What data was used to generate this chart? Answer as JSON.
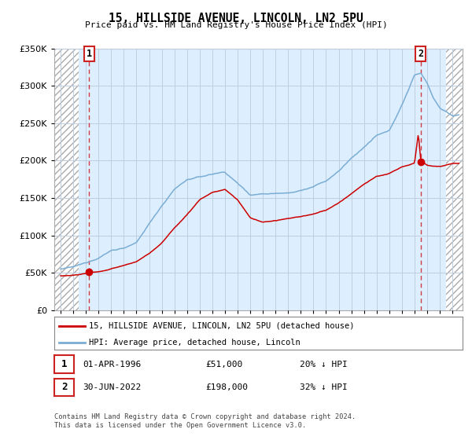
{
  "title": "15, HILLSIDE AVENUE, LINCOLN, LN2 5PU",
  "subtitle": "Price paid vs. HM Land Registry's House Price Index (HPI)",
  "ytick_values": [
    0,
    50000,
    100000,
    150000,
    200000,
    250000,
    300000,
    350000
  ],
  "ylim": [
    0,
    350000
  ],
  "xlim_start": 1993.5,
  "xlim_end": 2025.8,
  "hatch_left_end": 1995.4,
  "hatch_right_start": 2024.5,
  "point1_x": 1996.25,
  "point1_y": 51000,
  "point2_x": 2022.5,
  "point2_y": 198000,
  "red_line_color": "#cc0000",
  "blue_line_color": "#7aadd4",
  "bg_plot_color": "#ddeeff",
  "grid_color": "#c8d8e8",
  "annotation1_label": "1",
  "annotation2_label": "2",
  "legend_label1": "15, HILLSIDE AVENUE, LINCOLN, LN2 5PU (detached house)",
  "legend_label2": "HPI: Average price, detached house, Lincoln",
  "table_row1": [
    "1",
    "01-APR-1996",
    "£51,000",
    "20% ↓ HPI"
  ],
  "table_row2": [
    "2",
    "30-JUN-2022",
    "£198,000",
    "32% ↓ HPI"
  ],
  "footnote": "Contains HM Land Registry data © Crown copyright and database right 2024.\nThis data is licensed under the Open Government Licence v3.0."
}
